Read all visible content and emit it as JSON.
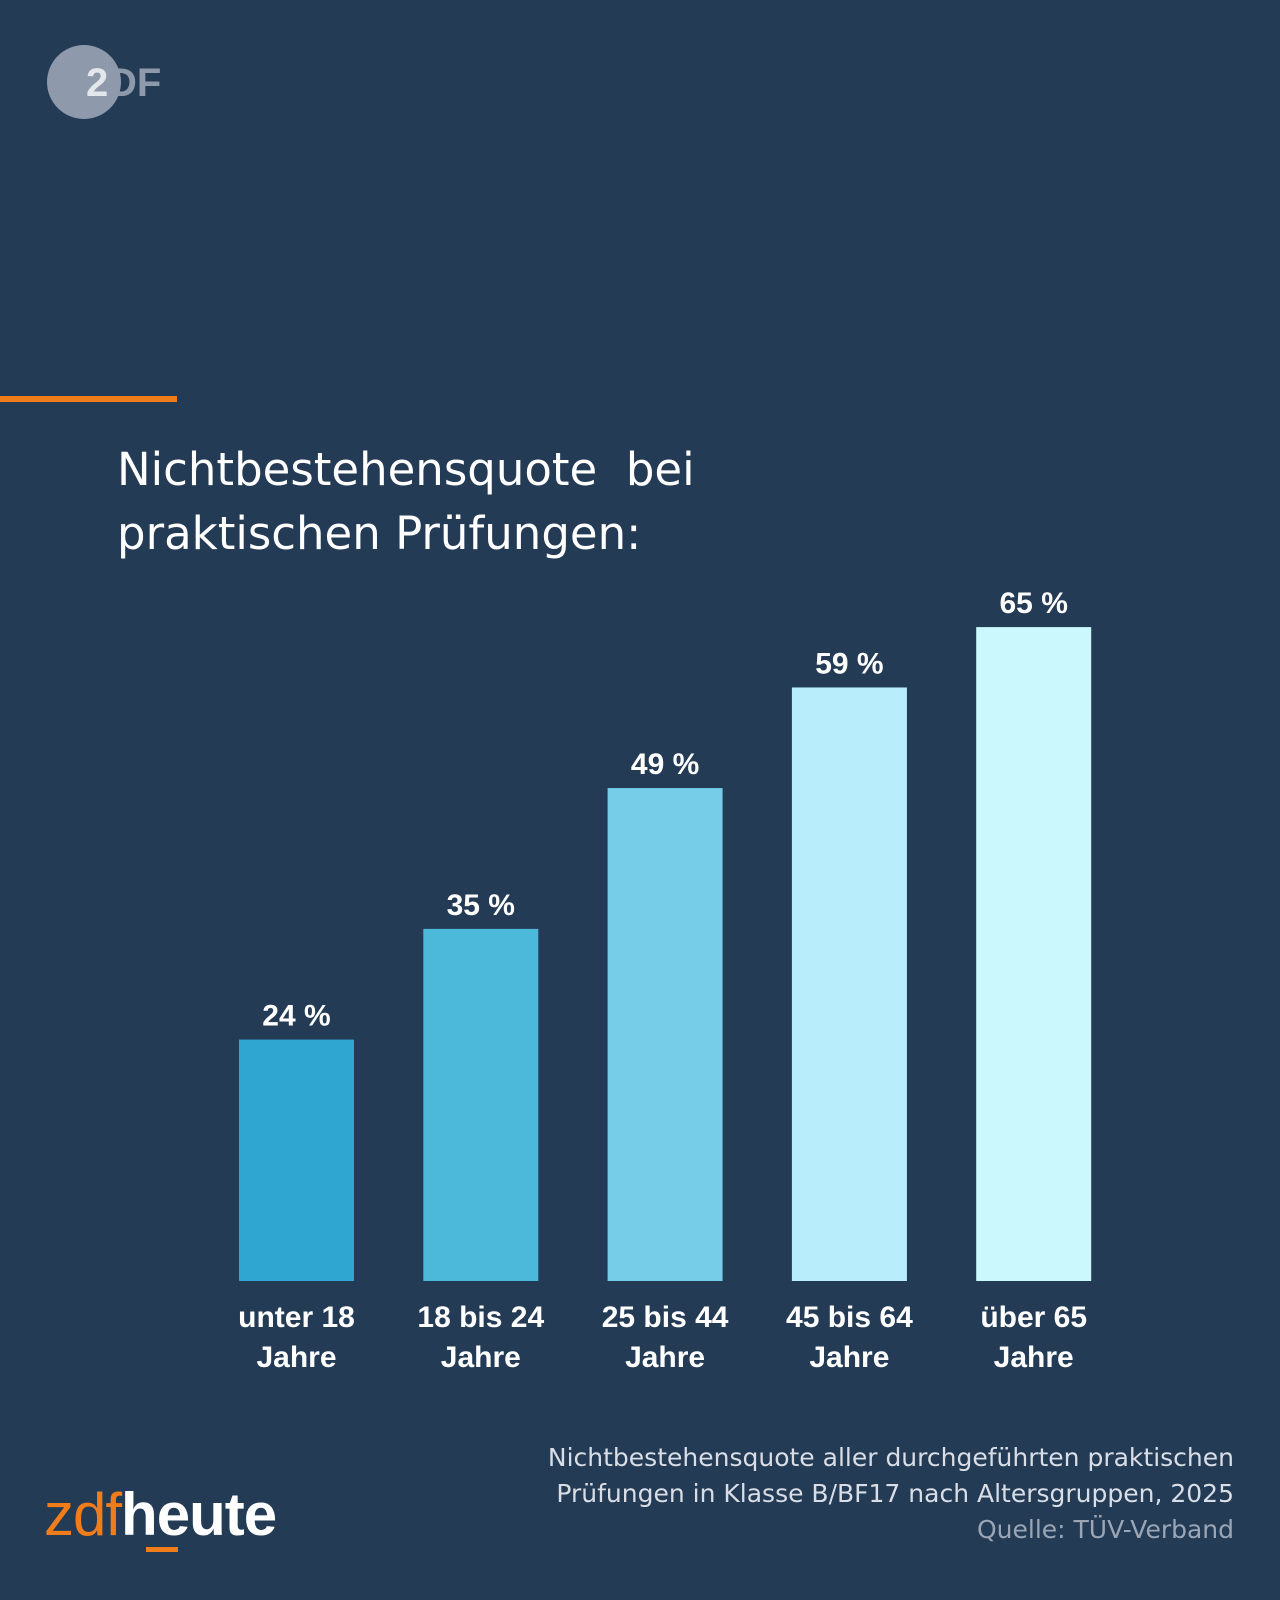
{
  "logo": {
    "text": "ZDF"
  },
  "title_lines": [
    "Nichtbestehensquote  bei",
    "praktischen Prüfungen:"
  ],
  "chart_data": {
    "type": "bar",
    "title": "Nichtbestehensquote bei praktischen Prüfungen:",
    "categories": [
      [
        "unter 18",
        "Jahre"
      ],
      [
        "18 bis 24",
        "Jahre"
      ],
      [
        "25 bis 44",
        "Jahre"
      ],
      [
        "45 bis 64",
        "Jahre"
      ],
      [
        "über 65",
        "Jahre"
      ]
    ],
    "values": [
      24,
      35,
      49,
      59,
      65
    ],
    "value_labels": [
      "24 %",
      "35 %",
      "49 %",
      "59 %",
      "65 %"
    ],
    "unit": "%",
    "ylim": [
      0,
      100
    ],
    "grid": false,
    "colors": [
      "#2fa6d1",
      "#4cb8da",
      "#75cde8",
      "#b8eefc",
      "#cbf8fd"
    ]
  },
  "footnote": {
    "lines": [
      "Nichtbestehensquote aller durchgeführten praktischen",
      "Prüfungen in Klasse B/BF17 nach Altersgruppen, 2025"
    ],
    "source": "Quelle: TÜV-Verband"
  },
  "brand": {
    "zdf": "zdf",
    "heute": "heute"
  },
  "colors": {
    "background": "#243b55",
    "accent": "#f07d1a"
  }
}
